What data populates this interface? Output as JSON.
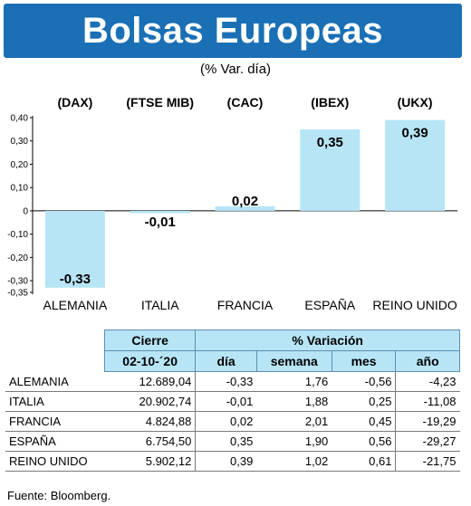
{
  "header": {
    "title": "Bolsas Europeas",
    "subtitle": "(% Var. día)"
  },
  "chart_data": {
    "type": "bar",
    "categories": [
      "ALEMANIA",
      "ITALIA",
      "FRANCIA",
      "ESPAÑA",
      "REINO UNIDO"
    ],
    "indices": [
      "(DAX)",
      "(FTSE MIB)",
      "(CAC)",
      "(IBEX)",
      "(UKX)"
    ],
    "values": [
      -0.33,
      -0.01,
      0.02,
      0.35,
      0.39
    ],
    "value_labels": [
      "-0,33",
      "-0,01",
      "0,02",
      "0,35",
      "0,39"
    ],
    "ylim": [
      -0.35,
      0.4
    ],
    "yticks": [
      "0,40",
      "0,30",
      "0,20",
      "0,10",
      "0",
      "-0,10",
      "-0,20",
      "-0,30",
      "-0,35"
    ],
    "ytick_values": [
      0.4,
      0.3,
      0.2,
      0.1,
      0,
      -0.1,
      -0.2,
      -0.3,
      -0.35
    ],
    "bar_color": "#b7e5f6",
    "grid": false
  },
  "table": {
    "group_headers": [
      "Cierre",
      "% Variación"
    ],
    "sub_headers": [
      "02-10-´20",
      "día",
      "semana",
      "mes",
      "año"
    ],
    "rows": [
      [
        "ALEMANIA",
        "12.689,04",
        "-0,33",
        "1,76",
        "-0,56",
        "-4,23"
      ],
      [
        "ITALIA",
        "20.902,74",
        "-0,01",
        "1,88",
        "0,25",
        "-11,08"
      ],
      [
        "FRANCIA",
        "4.824,88",
        "0,02",
        "2,01",
        "0,45",
        "-19,29"
      ],
      [
        "ESPAÑA",
        "6.754,50",
        "0,35",
        "1,90",
        "0,56",
        "-29,27"
      ],
      [
        "REINO UNIDO",
        "5.902,12",
        "0,39",
        "1,02",
        "0,61",
        "-21,75"
      ]
    ]
  },
  "source": "Fuente: Bloomberg."
}
